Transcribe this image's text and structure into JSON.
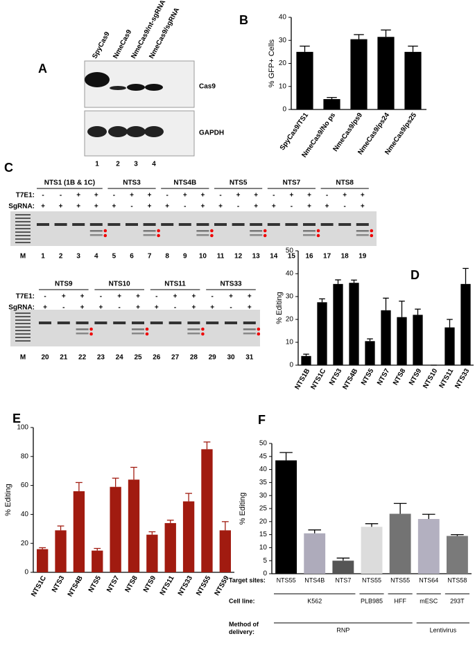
{
  "blot": {
    "label": "A",
    "lanes": [
      "SpyCas9",
      "NmeCas9",
      "NmeCas9/nt-sgRNA",
      "NmeCas9/sgRNA"
    ],
    "lane_numbers": [
      "1",
      "2",
      "3",
      "4"
    ],
    "rows": [
      "Cas9",
      "GAPDH"
    ]
  },
  "gel_panel": {
    "label": "C",
    "row_labels": [
      "T7E1:",
      "SgRNA:"
    ],
    "marker": "M",
    "gels": [
      {
        "groups": [
          {
            "name": "NTS1 (1B & 1C)",
            "lanes": [
              "1",
              "2",
              "3",
              "4"
            ],
            "t7e1": [
              "-",
              "-",
              "+",
              "+"
            ],
            "sgrna": [
              "+",
              "+",
              "+",
              "+"
            ]
          },
          {
            "name": "NTS3",
            "lanes": [
              "5",
              "6",
              "7"
            ],
            "t7e1": [
              "-",
              "+",
              "+"
            ],
            "sgrna": [
              "+",
              "-",
              "+"
            ]
          },
          {
            "name": "NTS4B",
            "lanes": [
              "8",
              "9",
              "10"
            ],
            "t7e1": [
              "-",
              "+",
              "+"
            ],
            "sgrna": [
              "+",
              "-",
              "+"
            ]
          },
          {
            "name": "NTS5",
            "lanes": [
              "11",
              "12",
              "13"
            ],
            "t7e1": [
              "-",
              "+",
              "+"
            ],
            "sgrna": [
              "+",
              "-",
              "+"
            ]
          },
          {
            "name": "NTS7",
            "lanes": [
              "14",
              "15",
              "16"
            ],
            "t7e1": [
              "-",
              "+",
              "+"
            ],
            "sgrna": [
              "+",
              "-",
              "+"
            ]
          },
          {
            "name": "NTS8",
            "lanes": [
              "17",
              "18",
              "19"
            ],
            "t7e1": [
              "-",
              "+",
              "+"
            ],
            "sgrna": [
              "+",
              "-",
              "+"
            ]
          }
        ]
      },
      {
        "groups": [
          {
            "name": "NTS9",
            "lanes": [
              "20",
              "21",
              "22"
            ],
            "t7e1": [
              "-",
              "+",
              "+"
            ],
            "sgrna": [
              "+",
              "-",
              "+"
            ]
          },
          {
            "name": "NTS10",
            "lanes": [
              "23",
              "24",
              "25"
            ],
            "t7e1": [
              "-",
              "+",
              "+"
            ],
            "sgrna": [
              "+",
              "-",
              "+"
            ]
          },
          {
            "name": "NTS11",
            "lanes": [
              "26",
              "27",
              "28"
            ],
            "t7e1": [
              "-",
              "+",
              "+"
            ],
            "sgrna": [
              "+",
              "-",
              "+"
            ]
          },
          {
            "name": "NTS33",
            "lanes": [
              "29",
              "30",
              "31"
            ],
            "t7e1": [
              "-",
              "+",
              "+"
            ],
            "sgrna": [
              "+",
              "-",
              "+"
            ]
          }
        ]
      }
    ]
  },
  "chart_data": [
    {
      "type": "bar",
      "label": "B",
      "ylabel": "% GFP+ Cells",
      "categories": [
        "SpyCas9/TS1",
        "NmeCas9/No ps",
        "NmeCas9/ps9",
        "NmeCas9/ps24",
        "NmeCas9/ps25"
      ],
      "values": [
        25,
        4.5,
        30.5,
        31.5,
        25
      ],
      "errors": [
        2.5,
        0.7,
        2,
        3,
        2.5
      ],
      "color": "#000000",
      "ylim": [
        0,
        40
      ],
      "yticks": [
        0,
        10,
        20,
        30,
        40
      ]
    },
    {
      "type": "bar",
      "label": "D",
      "ylabel": "% Editing",
      "categories": [
        "NTS1B",
        "NTS1C",
        "NTS3",
        "NTS4B",
        "NTS5",
        "NTS7",
        "NTS8",
        "NTS9",
        "NTS10",
        "NTS11",
        "NTS33"
      ],
      "values": [
        4,
        27.5,
        35.5,
        36,
        10.5,
        24,
        21,
        22,
        0,
        16.5,
        35.5
      ],
      "errors": [
        0.8,
        1.5,
        1.8,
        1.2,
        1,
        5.3,
        7,
        2.5,
        0,
        3.5,
        6.8
      ],
      "color": "#000000",
      "ylim": [
        0,
        50
      ],
      "yticks": [
        0,
        10,
        20,
        30,
        40,
        50
      ]
    },
    {
      "type": "bar",
      "label": "E",
      "ylabel": "% Editing",
      "categories": [
        "NTS1C",
        "NTS3",
        "NTS4B",
        "NTS5",
        "NTS7",
        "NTS8",
        "NTS9",
        "NTS11",
        "NTS33",
        "NTS55",
        "NTS59"
      ],
      "values": [
        16,
        29,
        56,
        15,
        59,
        64,
        26,
        34,
        49,
        85,
        29
      ],
      "errors": [
        1,
        3,
        6,
        1.5,
        6,
        8.5,
        2,
        2,
        5.5,
        5,
        6
      ],
      "color": "#a11b10",
      "ylim": [
        0,
        100
      ],
      "yticks": [
        0,
        20,
        40,
        60,
        80,
        100
      ]
    },
    {
      "type": "bar",
      "label": "F",
      "ylabel": "% Editing",
      "categories": [
        "NTS55",
        "NTS4B",
        "NTS7",
        "NTS55",
        "NTS55",
        "NTS64",
        "NTS58"
      ],
      "values": [
        43.5,
        15.5,
        5,
        18,
        23,
        21,
        14.5
      ],
      "errors": [
        3,
        1.3,
        1,
        1.2,
        4,
        1.8,
        0.5
      ],
      "colors": [
        "#000000",
        "#aeabbb",
        "#555555",
        "#dcdcdc",
        "#737373",
        "#b3b0c0",
        "#7a7a7a"
      ],
      "ylim": [
        0,
        50
      ],
      "yticks": [
        0,
        5,
        10,
        15,
        20,
        25,
        30,
        35,
        40,
        45,
        50
      ],
      "row_labels": [
        "Target sites:",
        "Cell line:",
        "Method of delivery:"
      ],
      "cell_lines": [
        "K562",
        "K562",
        "K562",
        "PLB985",
        "HFF",
        "mESC",
        "293T"
      ],
      "delivery": [
        "RNP",
        "RNP",
        "RNP",
        "RNP",
        "RNP",
        "Lentivirus",
        "Lentivirus"
      ]
    }
  ]
}
